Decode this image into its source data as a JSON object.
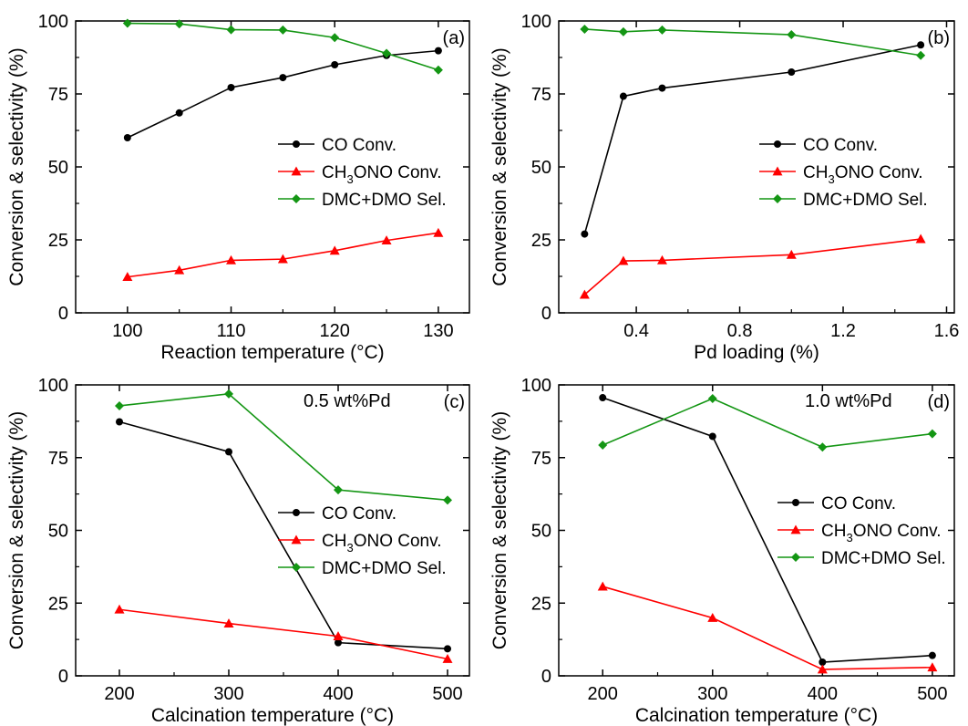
{
  "chart_data": [
    {
      "type": "line",
      "panel": "(a)",
      "annotation": "",
      "xlabel": "Reaction temperature (°C)",
      "ylabel": "Conversion & selectivity (%)",
      "xlim": [
        95,
        133
      ],
      "ylim": [
        0,
        100
      ],
      "xticks": [
        100,
        110,
        120,
        130
      ],
      "xtick_labels": [
        "100",
        "110",
        "120",
        "130"
      ],
      "yticks": [
        0,
        25,
        50,
        75,
        100
      ],
      "ytick_labels": [
        "0",
        "25",
        "50",
        "75",
        "100"
      ],
      "legend_position": "middle-right",
      "series": [
        {
          "name": "CO Conv.",
          "color": "#000000",
          "marker": "circle",
          "x": [
            100,
            105,
            110,
            115,
            120,
            125,
            130
          ],
          "y": [
            60,
            68.5,
            77.2,
            80.6,
            85,
            88.2,
            89.8
          ]
        },
        {
          "name": "CH3ONO Conv.",
          "name_main": "CH",
          "name_sub": "3",
          "name_rest": "ONO Conv.",
          "color": "#ff0000",
          "marker": "triangle",
          "x": [
            100,
            105,
            110,
            115,
            120,
            125,
            130
          ],
          "y": [
            12.3,
            14.6,
            18,
            18.4,
            21.3,
            24.8,
            27.4
          ]
        },
        {
          "name": "DMC+DMO Sel.",
          "color": "#149614",
          "marker": "diamond",
          "x": [
            100,
            105,
            110,
            115,
            120,
            125,
            130
          ],
          "y": [
            99.2,
            99,
            97,
            96.9,
            94.3,
            88.9,
            83.2
          ]
        }
      ]
    },
    {
      "type": "line",
      "panel": "(b)",
      "annotation": "",
      "xlabel": "Pd loading (%)",
      "ylabel": "Conversion & selectivity (%)",
      "xlim": [
        0.1,
        1.63
      ],
      "ylim": [
        0,
        100
      ],
      "xticks": [
        0.4,
        0.8,
        1.2,
        1.6
      ],
      "xtick_labels": [
        "0.4",
        "0.8",
        "1.2",
        "1.6"
      ],
      "yticks": [
        0,
        25,
        50,
        75,
        100
      ],
      "ytick_labels": [
        "0",
        "25",
        "50",
        "75",
        "100"
      ],
      "legend_position": "middle-right",
      "series": [
        {
          "name": "CO Conv.",
          "color": "#000000",
          "marker": "circle",
          "x": [
            0.2,
            0.35,
            0.5,
            1.0,
            1.5
          ],
          "y": [
            27,
            74.2,
            77,
            82.5,
            91.8
          ]
        },
        {
          "name": "CH3ONO Conv.",
          "name_main": "CH",
          "name_sub": "3",
          "name_rest": "ONO Conv.",
          "color": "#ff0000",
          "marker": "triangle",
          "x": [
            0.2,
            0.35,
            0.5,
            1.0,
            1.5
          ],
          "y": [
            6.2,
            17.8,
            18,
            19.9,
            25.3
          ]
        },
        {
          "name": "DMC+DMO Sel.",
          "color": "#149614",
          "marker": "diamond",
          "x": [
            0.2,
            0.35,
            0.5,
            1.0,
            1.5
          ],
          "y": [
            97.2,
            96.3,
            96.9,
            95.3,
            88.2
          ]
        }
      ]
    },
    {
      "type": "line",
      "panel": "(c)",
      "annotation": "0.5 wt%Pd",
      "xlabel": "Calcination temperature (°C)",
      "ylabel": "Conversion & selectivity (%)",
      "xlim": [
        160,
        520
      ],
      "ylim": [
        0,
        100
      ],
      "xticks": [
        200,
        300,
        400,
        500
      ],
      "xtick_labels": [
        "200",
        "300",
        "400",
        "500"
      ],
      "yticks": [
        0,
        25,
        50,
        75,
        100
      ],
      "ytick_labels": [
        "0",
        "25",
        "50",
        "75",
        "100"
      ],
      "legend_position": "lower-right",
      "series": [
        {
          "name": "CO Conv.",
          "color": "#000000",
          "marker": "circle",
          "x": [
            200,
            300,
            400,
            500
          ],
          "y": [
            87.3,
            77,
            11.4,
            9.3
          ]
        },
        {
          "name": "CH3ONO Conv.",
          "name_main": "CH",
          "name_sub": "3",
          "name_rest": "ONO Conv.",
          "color": "#ff0000",
          "marker": "triangle",
          "x": [
            200,
            300,
            400,
            500
          ],
          "y": [
            22.8,
            18,
            13.6,
            5.8
          ]
        },
        {
          "name": "DMC+DMO Sel.",
          "color": "#149614",
          "marker": "diamond",
          "x": [
            200,
            300,
            400,
            500
          ],
          "y": [
            92.8,
            96.9,
            63.9,
            60.4
          ]
        }
      ]
    },
    {
      "type": "line",
      "panel": "(d)",
      "annotation": "1.0 wt%Pd",
      "xlabel": "Calcination temperature (°C)",
      "ylabel": "Conversion & selectivity (%)",
      "xlim": [
        160,
        520
      ],
      "ylim": [
        0,
        100
      ],
      "xticks": [
        200,
        300,
        400,
        500
      ],
      "xtick_labels": [
        "200",
        "300",
        "400",
        "500"
      ],
      "yticks": [
        0,
        25,
        50,
        75,
        100
      ],
      "ytick_labels": [
        "0",
        "25",
        "50",
        "75",
        "100"
      ],
      "legend_position": "middle-right",
      "series": [
        {
          "name": "CO Conv.",
          "color": "#000000",
          "marker": "circle",
          "x": [
            200,
            300,
            400,
            500
          ],
          "y": [
            95.6,
            82.3,
            4.7,
            7
          ]
        },
        {
          "name": "CH3ONO Conv.",
          "name_main": "CH",
          "name_sub": "3",
          "name_rest": "ONO Conv.",
          "color": "#ff0000",
          "marker": "triangle",
          "x": [
            200,
            300,
            400,
            500
          ],
          "y": [
            30.7,
            19.9,
            2.2,
            2.9
          ]
        },
        {
          "name": "DMC+DMO Sel.",
          "color": "#149614",
          "marker": "diamond",
          "x": [
            200,
            300,
            400,
            500
          ],
          "y": [
            79.3,
            95.3,
            78.6,
            83.2
          ]
        }
      ]
    }
  ]
}
